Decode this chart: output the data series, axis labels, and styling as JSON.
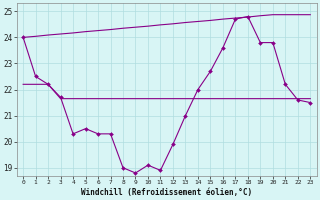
{
  "x": [
    0,
    1,
    2,
    3,
    4,
    5,
    6,
    7,
    8,
    9,
    10,
    11,
    12,
    13,
    14,
    15,
    16,
    17,
    18,
    19,
    20,
    21,
    22,
    23
  ],
  "y_main": [
    24.0,
    22.5,
    22.2,
    21.7,
    20.3,
    20.5,
    20.3,
    20.3,
    19.0,
    18.8,
    19.1,
    18.9,
    19.9,
    21.0,
    22.0,
    22.7,
    23.6,
    24.7,
    24.8,
    23.8,
    23.8,
    22.2,
    21.6,
    21.5
  ],
  "y_linear1": [
    24.0,
    24.04,
    24.09,
    24.13,
    24.17,
    24.22,
    24.26,
    24.3,
    24.35,
    24.39,
    24.43,
    24.48,
    24.52,
    24.57,
    24.61,
    24.65,
    24.7,
    24.74,
    24.78,
    24.83,
    24.87,
    24.87,
    24.87,
    24.87
  ],
  "y_linear2": [
    22.2,
    22.2,
    22.2,
    21.65,
    21.65,
    21.65,
    21.65,
    21.65,
    21.65,
    21.65,
    21.65,
    21.65,
    21.65,
    21.65,
    21.65,
    21.65,
    21.65,
    21.65,
    21.65,
    21.65,
    21.65,
    21.65,
    21.65,
    21.65
  ],
  "line_color": "#880088",
  "bg_color": "#D8F5F5",
  "grid_color": "#B0DDE0",
  "xlabel": "Windchill (Refroidissement éolien,°C)",
  "ylim": [
    18.7,
    25.3
  ],
  "xlim": [
    -0.5,
    23.5
  ],
  "yticks": [
    19,
    20,
    21,
    22,
    23,
    24,
    25
  ],
  "xticks": [
    0,
    1,
    2,
    3,
    4,
    5,
    6,
    7,
    8,
    9,
    10,
    11,
    12,
    13,
    14,
    15,
    16,
    17,
    18,
    19,
    20,
    21,
    22,
    23
  ]
}
